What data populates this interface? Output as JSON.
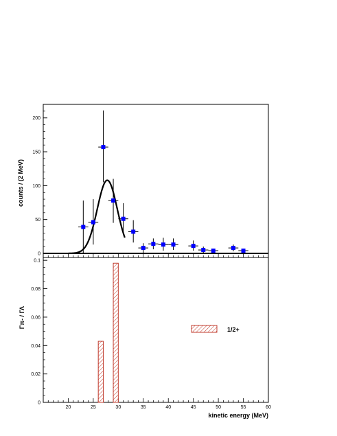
{
  "chart_data": [
    {
      "type": "scatter",
      "ylabel": "counts / (2 MeV)",
      "xlim": [
        15,
        60
      ],
      "ylim": [
        0,
        220
      ],
      "grid": false,
      "x_ticks": [
        20,
        25,
        30,
        35,
        40,
        45,
        50,
        55,
        60
      ],
      "y_ticks": [
        0,
        50,
        100,
        150,
        200
      ],
      "series": [
        {
          "type": "scatter_errorbars",
          "color": "#0000ff",
          "points": [
            {
              "x": 23,
              "y": 39,
              "yerr_low": 39,
              "yerr_high": 39
            },
            {
              "x": 25,
              "y": 46,
              "yerr_low": 33,
              "yerr_high": 34
            },
            {
              "x": 27,
              "y": 157,
              "yerr_low": 52,
              "yerr_high": 54
            },
            {
              "x": 29,
              "y": 78,
              "yerr_low": 33,
              "yerr_high": 32
            },
            {
              "x": 31,
              "y": 51,
              "yerr_low": 22,
              "yerr_high": 23
            },
            {
              "x": 33,
              "y": 32,
              "yerr_low": 16,
              "yerr_high": 17
            },
            {
              "x": 35,
              "y": 8,
              "yerr_low": 7,
              "yerr_high": 7
            },
            {
              "x": 37,
              "y": 14,
              "yerr_low": 8,
              "yerr_high": 8
            },
            {
              "x": 39,
              "y": 13,
              "yerr_low": 9,
              "yerr_high": 10
            },
            {
              "x": 41,
              "y": 13,
              "yerr_low": 8,
              "yerr_high": 9
            },
            {
              "x": 45,
              "y": 11,
              "yerr_low": 7,
              "yerr_high": 8
            },
            {
              "x": 47,
              "y": 5,
              "yerr_low": 4,
              "yerr_high": 5
            },
            {
              "x": 49,
              "y": 4,
              "yerr_low": 3,
              "yerr_high": 3
            },
            {
              "x": 53,
              "y": 8,
              "yerr_low": 5,
              "yerr_high": 5
            },
            {
              "x": 55,
              "y": 4,
              "yerr_low": 3,
              "yerr_high": 3
            }
          ],
          "xerr": 1
        },
        {
          "type": "curve",
          "color": "#000000",
          "shape": "gaussian",
          "mean": 27.8,
          "sigma": 2.0,
          "amplitude": 108,
          "x_range": [
            20,
            31.3
          ]
        }
      ],
      "baseline": {
        "y": 0,
        "x_range": [
          15,
          60
        ]
      }
    },
    {
      "type": "bar",
      "xlabel": "kinetic energy (MeV)",
      "ylabel": "Γπ- / ΓΛ",
      "xlim": [
        15,
        60
      ],
      "ylim": [
        0,
        0.102
      ],
      "grid": false,
      "x_ticks": [
        20,
        25,
        30,
        35,
        40,
        45,
        50,
        55,
        60
      ],
      "y_ticks": [
        0,
        0.02,
        0.04,
        0.06,
        0.08,
        0.1
      ],
      "series": [
        {
          "name": "1/2+",
          "fill": "hatched",
          "color": "#c0392b",
          "bars": [
            {
              "x_range": [
                26,
                27
              ],
              "value": 0.043
            },
            {
              "x_range": [
                29,
                30
              ],
              "value": 0.098
            }
          ]
        }
      ],
      "legend": {
        "position": "right",
        "entries": [
          "1/2+"
        ]
      }
    }
  ]
}
